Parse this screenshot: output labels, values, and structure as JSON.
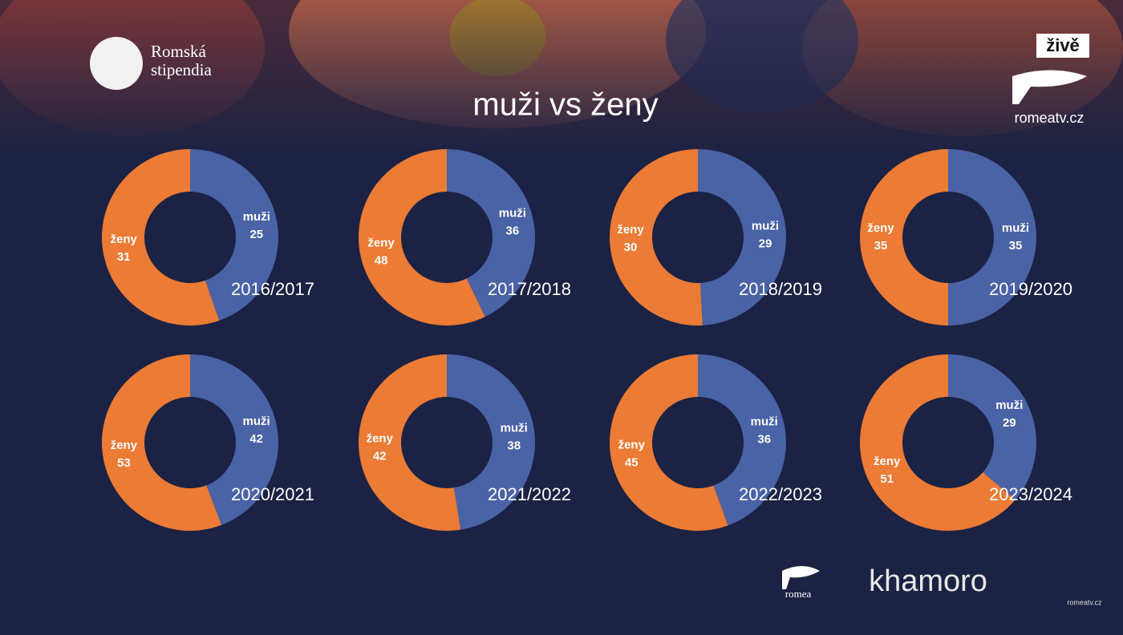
{
  "slide": {
    "title": "muži vs ženy",
    "logo": [
      "Romská",
      "stipendia"
    ],
    "live": "živě",
    "channel": "romeatv.cz",
    "sponsor_left": "romea",
    "sponsor_right": "khamoro",
    "watermark": "romeatv.cz"
  },
  "chart_data": [
    {
      "type": "donut",
      "title": "2016/2017",
      "categories": [
        "muži",
        "ženy"
      ],
      "values": [
        25,
        31
      ],
      "colors": [
        "#4a62a6",
        "#ec7b35"
      ]
    },
    {
      "type": "donut",
      "title": "2017/2018",
      "categories": [
        "muži",
        "ženy"
      ],
      "values": [
        36,
        48
      ],
      "colors": [
        "#4a62a6",
        "#ec7b35"
      ]
    },
    {
      "type": "donut",
      "title": "2018/2019",
      "categories": [
        "muži",
        "ženy"
      ],
      "values": [
        29,
        30
      ],
      "colors": [
        "#4a62a6",
        "#ec7b35"
      ]
    },
    {
      "type": "donut",
      "title": "2019/2020",
      "categories": [
        "muži",
        "ženy"
      ],
      "values": [
        35,
        35
      ],
      "colors": [
        "#4a62a6",
        "#ec7b35"
      ]
    },
    {
      "type": "donut",
      "title": "2020/2021",
      "categories": [
        "muži",
        "ženy"
      ],
      "values": [
        42,
        53
      ],
      "colors": [
        "#4a62a6",
        "#ec7b35"
      ]
    },
    {
      "type": "donut",
      "title": "2021/2022",
      "categories": [
        "muži",
        "ženy"
      ],
      "values": [
        38,
        42
      ],
      "colors": [
        "#4a62a6",
        "#ec7b35"
      ]
    },
    {
      "type": "donut",
      "title": "2022/2023",
      "categories": [
        "muži",
        "ženy"
      ],
      "values": [
        36,
        45
      ],
      "colors": [
        "#4a62a6",
        "#ec7b35"
      ]
    },
    {
      "type": "donut",
      "title": "2023/2024",
      "categories": [
        "muži",
        "ženy"
      ],
      "values": [
        29,
        51
      ],
      "colors": [
        "#4a62a6",
        "#ec7b35"
      ]
    }
  ]
}
